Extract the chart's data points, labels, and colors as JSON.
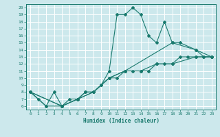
{
  "xlabel": "Humidex (Indice chaleur)",
  "background_color": "#cce8ec",
  "grid_color": "#ffffff",
  "line_color": "#1a7a6e",
  "xlim": [
    -0.5,
    23.5
  ],
  "ylim": [
    5.5,
    20.5
  ],
  "xticks": [
    0,
    1,
    2,
    3,
    4,
    5,
    6,
    7,
    8,
    9,
    10,
    11,
    12,
    13,
    14,
    15,
    16,
    17,
    18,
    19,
    20,
    21,
    22,
    23
  ],
  "yticks": [
    6,
    7,
    8,
    9,
    10,
    11,
    12,
    13,
    14,
    15,
    16,
    17,
    18,
    19,
    20
  ],
  "series1": {
    "x": [
      0,
      1,
      2,
      3,
      4,
      5,
      6,
      7,
      8,
      9,
      10,
      11,
      12,
      13,
      14,
      15,
      16,
      17,
      18,
      19,
      21,
      22,
      23
    ],
    "y": [
      8,
      7,
      6,
      8,
      6,
      7,
      7,
      8,
      8,
      9,
      11,
      19,
      19,
      20,
      19,
      16,
      15,
      18,
      15,
      15,
      14,
      13,
      13
    ]
  },
  "series2": {
    "x": [
      0,
      2,
      4,
      6,
      7,
      8,
      9,
      10,
      11,
      12,
      13,
      14,
      15,
      16,
      17,
      18,
      19,
      20,
      21,
      22,
      23
    ],
    "y": [
      8,
      6,
      6,
      7,
      8,
      8,
      9,
      10,
      10,
      11,
      11,
      11,
      11,
      12,
      12,
      12,
      13,
      13,
      13,
      13,
      13
    ]
  },
  "series3": {
    "x": [
      0,
      4,
      6,
      8,
      10,
      12,
      18,
      21,
      23
    ],
    "y": [
      8,
      6,
      7,
      8,
      10,
      11,
      15,
      14,
      13
    ]
  },
  "series4": {
    "x": [
      0,
      4,
      6,
      8,
      10,
      12,
      14,
      16,
      18,
      21,
      23
    ],
    "y": [
      8,
      6,
      7,
      8,
      10,
      11,
      11,
      12,
      12,
      13,
      13
    ]
  }
}
